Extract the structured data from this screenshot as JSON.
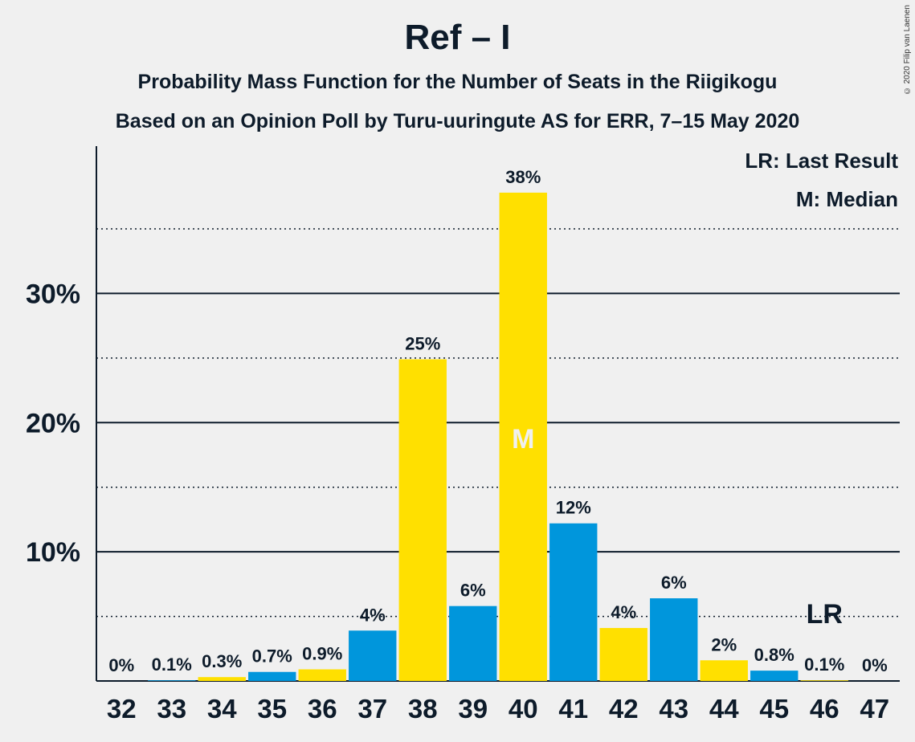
{
  "header": {
    "title": "Ref – I",
    "subtitle1": "Probability Mass Function for the Number of Seats in the Riigikogu",
    "subtitle2": "Based on an Opinion Poll by Turu-uuringute AS for ERR, 7–15 May 2020",
    "copyright": "© 2020 Filip van Laenen"
  },
  "legend": {
    "lr": "LR: Last Result",
    "m": "M: Median",
    "placement": "top-right"
  },
  "colors": {
    "yellow": "#ffe000",
    "blue": "#0096dc",
    "text": "#0d1b2a",
    "median_label": "#f0f0f0"
  },
  "chart_data": {
    "type": "bar",
    "categories": [
      "32",
      "33",
      "34",
      "35",
      "36",
      "37",
      "38",
      "39",
      "40",
      "41",
      "42",
      "43",
      "44",
      "45",
      "46",
      "47"
    ],
    "values": [
      0,
      0.1,
      0.3,
      0.7,
      0.9,
      4,
      25,
      6,
      38,
      12,
      4,
      6,
      2,
      0.8,
      0.1,
      0
    ],
    "plot_values": [
      0,
      0.05,
      0.3,
      0.7,
      0.9,
      3.9,
      24.9,
      5.8,
      37.8,
      12.2,
      4.1,
      6.4,
      1.6,
      0.8,
      0.05,
      0
    ],
    "labels": [
      "0%",
      "0.1%",
      "0.3%",
      "0.7%",
      "0.9%",
      "4%",
      "25%",
      "6%",
      "38%",
      "12%",
      "4%",
      "6%",
      "2%",
      "0.8%",
      "0.1%",
      "0%"
    ],
    "bar_colors": [
      "yellow",
      "blue",
      "yellow",
      "blue",
      "yellow",
      "blue",
      "yellow",
      "blue",
      "yellow",
      "blue",
      "yellow",
      "blue",
      "yellow",
      "blue",
      "yellow",
      "blue"
    ],
    "ylim": [
      0,
      41.4
    ],
    "yticks_major": [
      10,
      20,
      30
    ],
    "ytick_labels": [
      "10%",
      "20%",
      "30%"
    ],
    "yticks_minor": [
      5,
      15,
      25,
      35
    ],
    "median_category": "40",
    "median_marker": "M",
    "last_result_category": "46",
    "last_result_marker": "LR",
    "xlabel": "",
    "ylabel": ""
  }
}
